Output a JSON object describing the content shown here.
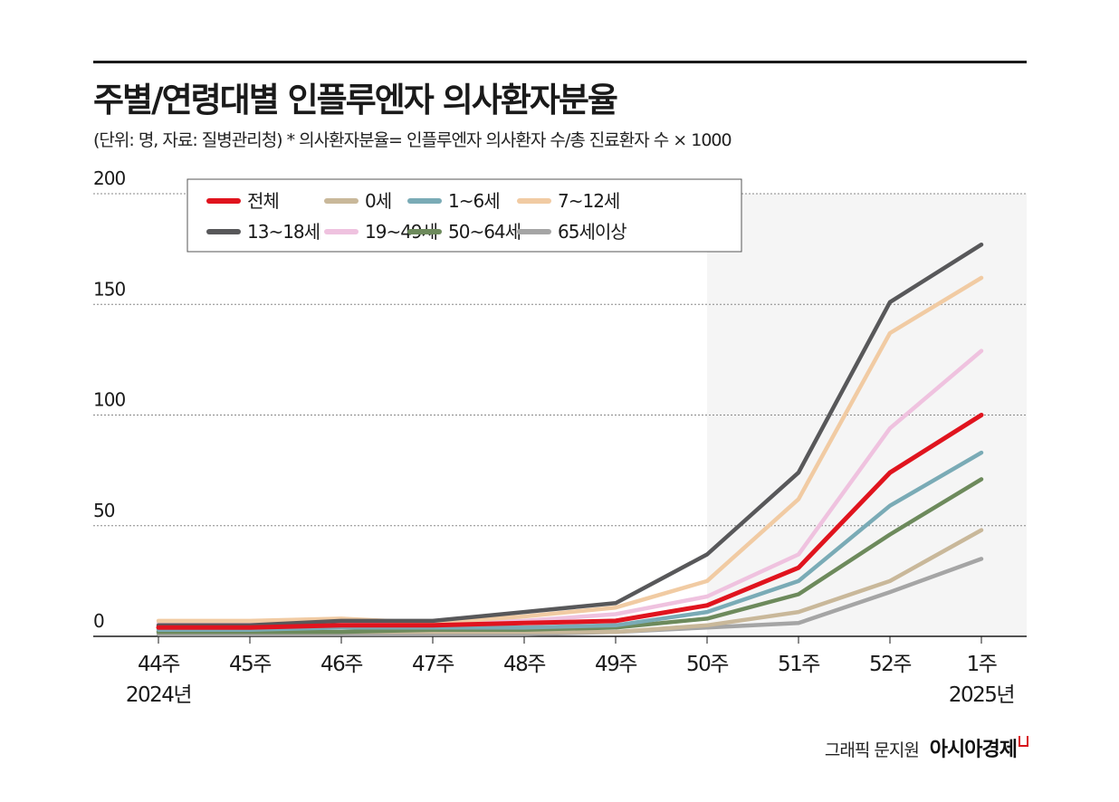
{
  "title": "주별/연령대별 인플루엔자 의사환자분율",
  "subtitle": "(단위: 명, 자료: 질병관리청)  * 의사환자분율= 인플루엔자 의사환자 수/총 진료환자 수 × 1000",
  "credit": {
    "byline": "그래픽 문지원",
    "brand": "아시아경제"
  },
  "colors": {
    "background_shade": "#f5f5f5",
    "gridline": "#888888",
    "brand_mark": "#d7131a"
  },
  "chart_data": {
    "type": "line",
    "title": "주별/연령대별 인플루엔자 의사환자분율",
    "unit": "명",
    "ylim": [
      0,
      200
    ],
    "yticks": [
      "0",
      "50",
      "100",
      "150",
      "200"
    ],
    "grid": true,
    "legend_position": "top-left",
    "categories": [
      "44주",
      "45주",
      "46주",
      "47주",
      "48주",
      "49주",
      "50주",
      "51주",
      "52주",
      "1주"
    ],
    "category_sublabels": [
      "2024년",
      "",
      "",
      "",
      "",
      "",
      "",
      "",
      "",
      "2025년"
    ],
    "series": [
      {
        "name": "13~18세",
        "color": "#58585a",
        "values": [
          5,
          5,
          7,
          7,
          11,
          15,
          37,
          74,
          151,
          177
        ]
      },
      {
        "name": "7~12세",
        "color": "#f1cba3",
        "values": [
          7,
          7,
          8,
          6,
          9,
          13,
          25,
          62,
          137,
          162
        ]
      },
      {
        "name": "19~49세",
        "color": "#efc2df",
        "values": [
          6,
          6,
          7,
          6,
          7,
          10,
          18,
          37,
          94,
          129
        ]
      },
      {
        "name": "전체",
        "color": "#e0141e",
        "values": [
          4,
          4,
          5,
          5,
          6,
          7,
          14,
          31,
          74,
          100
        ]
      },
      {
        "name": "1~6세",
        "color": "#7aabb6",
        "values": [
          3,
          3,
          4,
          4,
          4,
          5,
          11,
          25,
          59,
          83
        ]
      },
      {
        "name": "50~64세",
        "color": "#6d8a5c",
        "values": [
          2,
          2,
          2,
          3,
          3,
          4,
          8,
          19,
          46,
          71
        ]
      },
      {
        "name": "0세",
        "color": "#c9b89a",
        "values": [
          2,
          2,
          2,
          2,
          2,
          2,
          5,
          11,
          25,
          48
        ]
      },
      {
        "name": "65세이상",
        "color": "#a5a5a5",
        "values": [
          1,
          1,
          1,
          1,
          1,
          2,
          4,
          6,
          20,
          35
        ]
      }
    ],
    "legend_order": [
      "전체",
      "0세",
      "1~6세",
      "7~12세",
      "13~18세",
      "19~49세",
      "50~64세",
      "65세이상"
    ]
  }
}
